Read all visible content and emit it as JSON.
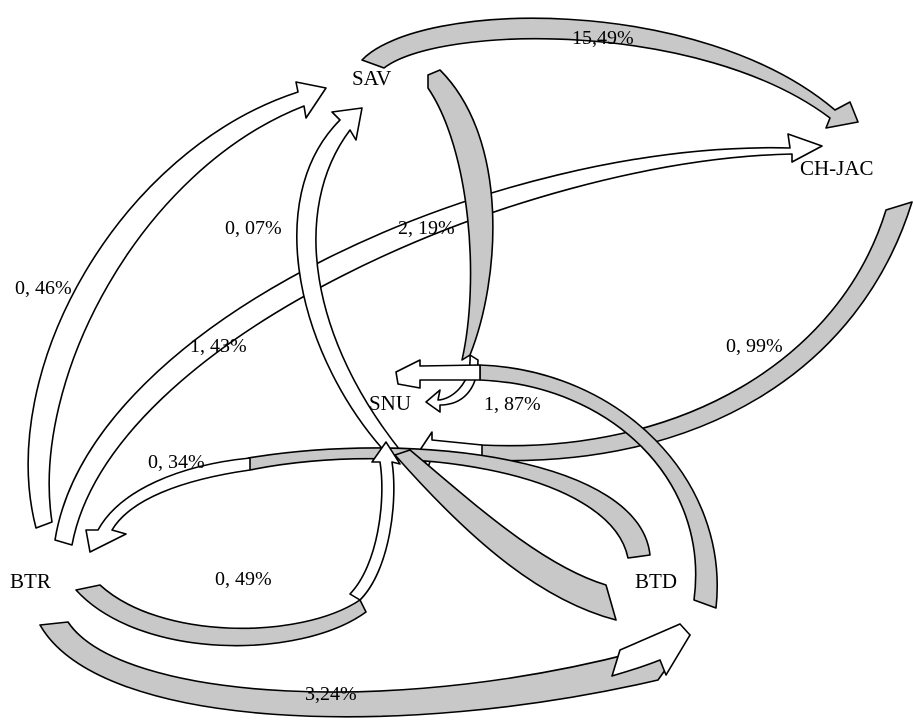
{
  "nodes": {
    "sav": "SAV",
    "ch_jac": "CH-JAC",
    "snu": "SNU",
    "btr": "BTR",
    "btd": "BTD"
  },
  "flows": {
    "sav_to_chjac": "15,49%",
    "btr_to_btd": "3,24%",
    "snu_to_sav": "0, 07%",
    "sav_to_snu": "2, 19%",
    "btr_to_sav": "0, 46%",
    "btr_to_chjac": "1, 43%",
    "chjac_to_snu": "0, 99%",
    "btd_to_snu": "1, 87%",
    "snu_to_btr": "0, 34%",
    "btr_to_snu": "0, 49%"
  },
  "colors": {
    "arrow_white": "#ffffff",
    "arrow_gray": "#c8c8c8",
    "outline": "#000000"
  }
}
